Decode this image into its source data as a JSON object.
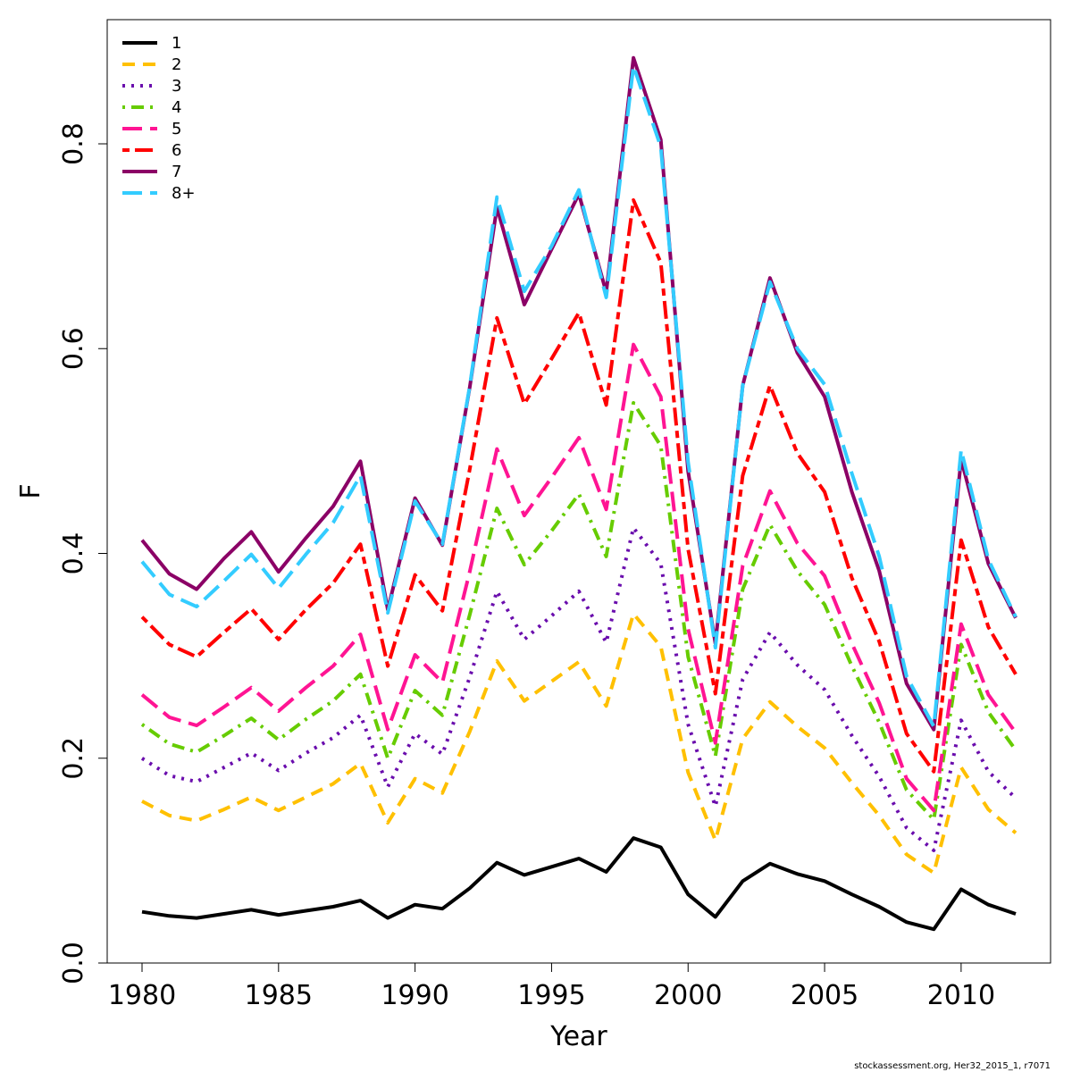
{
  "chart_data": {
    "type": "line",
    "xlabel": "Year",
    "ylabel": "F",
    "xlim": [
      1979.2,
      1980.0
    ],
    "ylim": [
      0.0,
      0.9
    ],
    "x_ticks": [
      1980,
      1985,
      1990,
      1995,
      2000,
      2005,
      2010
    ],
    "x_tick_labels": [
      "1980",
      "1985",
      "1990",
      "1995",
      "2000",
      "2005",
      "2010"
    ],
    "y_ticks": [
      0.0,
      0.2,
      0.4,
      0.6,
      0.8
    ],
    "y_tick_labels": [
      "0.0",
      "0.2",
      "0.4",
      "0.6",
      "0.8"
    ],
    "grid": false,
    "legend_position": "top-left",
    "x": [
      1980,
      1981,
      1982,
      1983,
      1984,
      1985,
      1986,
      1987,
      1988,
      1989,
      1990,
      1991,
      1992,
      1993,
      1994,
      1995,
      1996,
      1997,
      1998,
      1999,
      2000,
      2001,
      2002,
      2003,
      2004,
      2005,
      2006,
      2007,
      2008,
      2009,
      2010,
      2011,
      2012
    ],
    "series": [
      {
        "name": "1",
        "color": "#000000",
        "dash": "solid",
        "values": [
          0.05,
          0.046,
          0.044,
          0.048,
          0.052,
          0.047,
          0.051,
          0.055,
          0.061,
          0.044,
          0.057,
          0.053,
          0.073,
          0.098,
          0.086,
          0.094,
          0.102,
          0.089,
          0.122,
          0.113,
          0.067,
          0.045,
          0.08,
          0.097,
          0.087,
          0.08,
          0.067,
          0.055,
          0.04,
          0.033,
          0.072,
          0.057,
          0.048
        ]
      },
      {
        "name": "2",
        "color": "#FFC000",
        "dash": "dashed",
        "values": [
          0.158,
          0.144,
          0.139,
          0.15,
          0.162,
          0.149,
          0.162,
          0.175,
          0.195,
          0.137,
          0.18,
          0.166,
          0.226,
          0.295,
          0.256,
          0.275,
          0.294,
          0.251,
          0.341,
          0.309,
          0.186,
          0.12,
          0.219,
          0.255,
          0.231,
          0.21,
          0.176,
          0.144,
          0.106,
          0.088,
          0.191,
          0.15,
          0.127
        ]
      },
      {
        "name": "3",
        "color": "#6A0DAD",
        "dash": "dotted",
        "values": [
          0.2,
          0.183,
          0.177,
          0.191,
          0.205,
          0.188,
          0.205,
          0.22,
          0.242,
          0.172,
          0.224,
          0.204,
          0.279,
          0.363,
          0.316,
          0.339,
          0.363,
          0.313,
          0.425,
          0.39,
          0.233,
          0.153,
          0.277,
          0.323,
          0.291,
          0.267,
          0.222,
          0.182,
          0.132,
          0.11,
          0.237,
          0.187,
          0.161
        ]
      },
      {
        "name": "4",
        "color": "#66CC00",
        "dash": "dashdot",
        "values": [
          0.233,
          0.214,
          0.206,
          0.222,
          0.239,
          0.218,
          0.238,
          0.256,
          0.282,
          0.2,
          0.266,
          0.242,
          0.34,
          0.444,
          0.389,
          0.422,
          0.458,
          0.397,
          0.547,
          0.505,
          0.299,
          0.202,
          0.365,
          0.428,
          0.383,
          0.35,
          0.29,
          0.235,
          0.169,
          0.14,
          0.311,
          0.245,
          0.208
        ]
      },
      {
        "name": "5",
        "color": "#FF1493",
        "dash": "longdash",
        "values": [
          0.262,
          0.24,
          0.232,
          0.25,
          0.269,
          0.246,
          0.269,
          0.29,
          0.321,
          0.228,
          0.301,
          0.274,
          0.382,
          0.502,
          0.437,
          0.474,
          0.513,
          0.443,
          0.604,
          0.553,
          0.326,
          0.215,
          0.388,
          0.461,
          0.41,
          0.378,
          0.312,
          0.254,
          0.18,
          0.149,
          0.331,
          0.262,
          0.225
        ]
      },
      {
        "name": "6",
        "color": "#FF0000",
        "dash": "twodash",
        "values": [
          0.338,
          0.311,
          0.299,
          0.323,
          0.346,
          0.316,
          0.345,
          0.371,
          0.409,
          0.29,
          0.379,
          0.344,
          0.482,
          0.63,
          0.546,
          0.59,
          0.635,
          0.545,
          0.745,
          0.684,
          0.404,
          0.263,
          0.476,
          0.564,
          0.498,
          0.46,
          0.376,
          0.314,
          0.224,
          0.187,
          0.413,
          0.328,
          0.282
        ]
      },
      {
        "name": "7",
        "color": "#8B0066",
        "dash": "solid",
        "values": [
          0.413,
          0.38,
          0.365,
          0.395,
          0.421,
          0.382,
          0.415,
          0.446,
          0.49,
          0.345,
          0.454,
          0.408,
          0.562,
          0.738,
          0.643,
          0.697,
          0.751,
          0.655,
          0.884,
          0.804,
          0.48,
          0.312,
          0.564,
          0.669,
          0.596,
          0.553,
          0.46,
          0.383,
          0.273,
          0.228,
          0.492,
          0.39,
          0.337
        ]
      },
      {
        "name": "8+",
        "color": "#33CCFF",
        "dash": "longdash",
        "values": [
          0.392,
          0.36,
          0.348,
          0.373,
          0.399,
          0.366,
          0.399,
          0.43,
          0.476,
          0.342,
          0.451,
          0.409,
          0.563,
          0.748,
          0.656,
          0.7,
          0.755,
          0.65,
          0.876,
          0.797,
          0.489,
          0.308,
          0.564,
          0.665,
          0.6,
          0.565,
          0.478,
          0.397,
          0.28,
          0.231,
          0.501,
          0.394,
          0.338
        ]
      }
    ]
  },
  "footer_text": "stockassessment.org, Her32_2015_1, r7071"
}
